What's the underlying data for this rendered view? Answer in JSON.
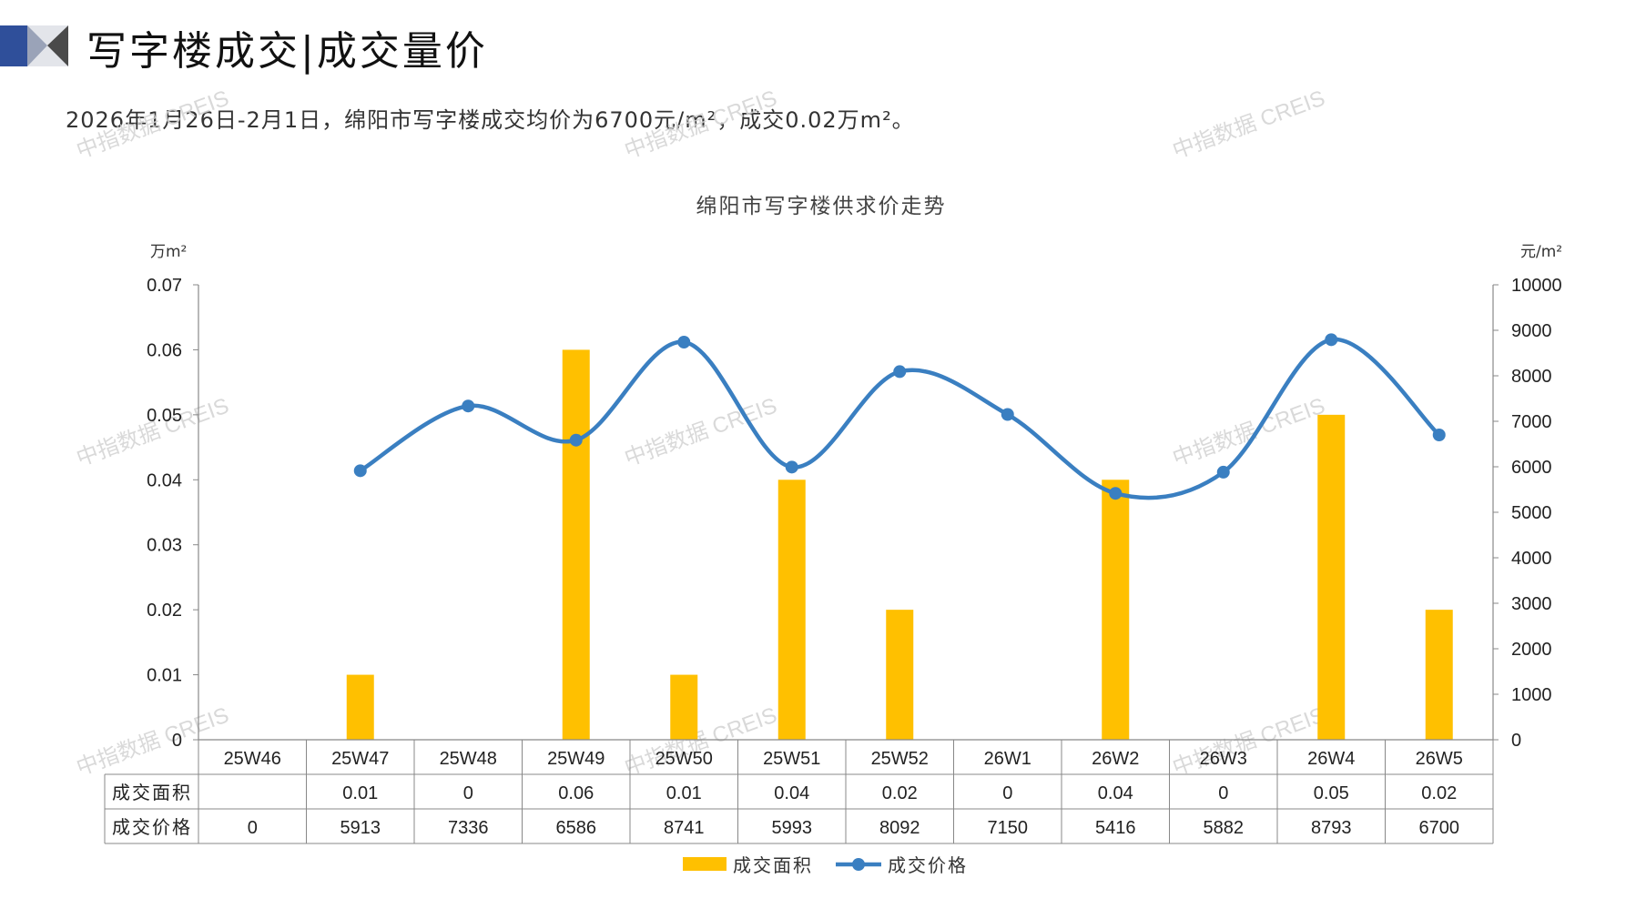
{
  "page": {
    "title": "写字楼成交|成交量价",
    "subtitle": "2026年1月26日-2月1日，绵阳市写字楼成交均价为6700元/m²，成交0.02万m²。",
    "watermark": "中指数据 CREIS"
  },
  "colors": {
    "bar": "#FFC000",
    "line": "#3A7FC1",
    "logo_dark": "#2F4F9A",
    "logo_light": "#B7BCC8"
  },
  "chart_data": {
    "type": "bar+line",
    "title": "绵阳市写字楼供求价走势",
    "categories": [
      "25W46",
      "25W47",
      "25W48",
      "25W49",
      "25W50",
      "25W51",
      "25W52",
      "26W1",
      "26W2",
      "26W3",
      "26W4",
      "26W5"
    ],
    "series": [
      {
        "name": "成交面积",
        "type": "bar",
        "axis": "left",
        "values": [
          null,
          0.01,
          0,
          0.06,
          0.01,
          0.04,
          0.02,
          0,
          0.04,
          0,
          0.05,
          0.02
        ],
        "table_text": [
          "",
          "0.01",
          "0",
          "0.06",
          "0.01",
          "0.04",
          "0.02",
          "0",
          "0.04",
          "0",
          "0.05",
          "0.02"
        ]
      },
      {
        "name": "成交价格",
        "type": "line",
        "axis": "right",
        "values": [
          0,
          5913,
          7336,
          6586,
          8741,
          5993,
          8092,
          7150,
          5416,
          5882,
          8793,
          6700
        ],
        "table_text": [
          "0",
          "5913",
          "7336",
          "6586",
          "8741",
          "5993",
          "8092",
          "7150",
          "5416",
          "5882",
          "8793",
          "6700"
        ]
      }
    ],
    "y_left": {
      "unit": "万m²",
      "range": [
        0,
        0.07
      ],
      "ticks": [
        "0",
        "0.01",
        "0.02",
        "0.03",
        "0.04",
        "0.05",
        "0.06",
        "0.07"
      ]
    },
    "y_right": {
      "unit": "元/m²",
      "range": [
        0,
        10000
      ],
      "ticks": [
        "0",
        "1000",
        "2000",
        "3000",
        "4000",
        "5000",
        "6000",
        "7000",
        "8000",
        "9000",
        "10000"
      ]
    },
    "legend": {
      "position": "bottom"
    },
    "data_table": true
  }
}
